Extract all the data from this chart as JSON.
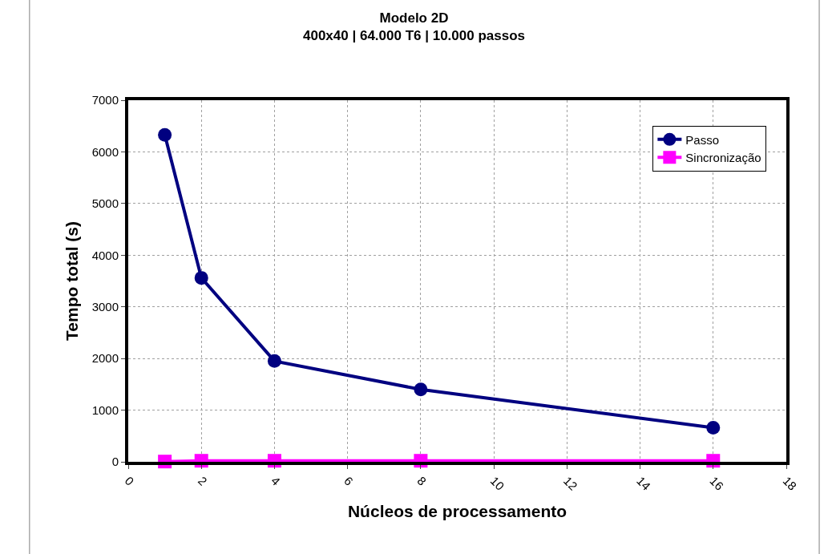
{
  "chart_data": {
    "type": "line",
    "title": "Modelo 2D",
    "subtitle": "400x40 | 64.000 T6 | 10.000 passos",
    "xlabel": "Núcleos de processamento",
    "ylabel": "Tempo total (s)",
    "x": [
      1,
      2,
      4,
      8,
      16
    ],
    "series": [
      {
        "name": "Passo",
        "color": "#000080",
        "values": [
          6330,
          3560,
          1950,
          1400,
          660
        ],
        "marker": "circle"
      },
      {
        "name": "Sincronização",
        "color": "#ff00ff",
        "values": [
          5,
          20,
          20,
          20,
          20
        ],
        "marker": "square"
      }
    ],
    "xlim": [
      0,
      18
    ],
    "xticks": [
      0,
      2,
      4,
      6,
      8,
      10,
      12,
      14,
      16,
      18
    ],
    "ylim": [
      0,
      7000
    ],
    "yticks": [
      0,
      1000,
      2000,
      3000,
      4000,
      5000,
      6000,
      7000
    ],
    "grid": true,
    "legend": "top right",
    "line_style": "solid"
  }
}
